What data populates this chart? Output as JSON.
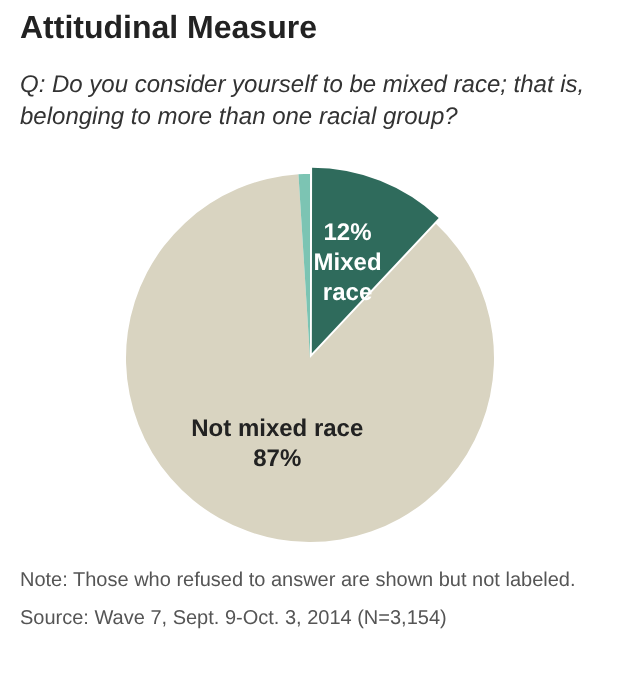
{
  "chart_data": {
    "type": "pie",
    "title": "Attitudinal Measure",
    "subtitle": "Q: Do you consider yourself to be mixed race; that is, belonging to more than one racial group?",
    "categories": [
      "Mixed race",
      "Not mixed race",
      null
    ],
    "values": [
      12,
      87,
      1
    ],
    "colors": [
      "#2f6b5c",
      "#d9d4c1",
      "#7cc4b3"
    ],
    "value_labels": [
      "12%",
      "87%",
      null
    ],
    "legend": false,
    "annotations": [
      "Note: Those who refused to answer are shown but not labeled.",
      "Source: Wave 7, Sept. 9-Oct. 3, 2014 (N=3,154)"
    ]
  }
}
